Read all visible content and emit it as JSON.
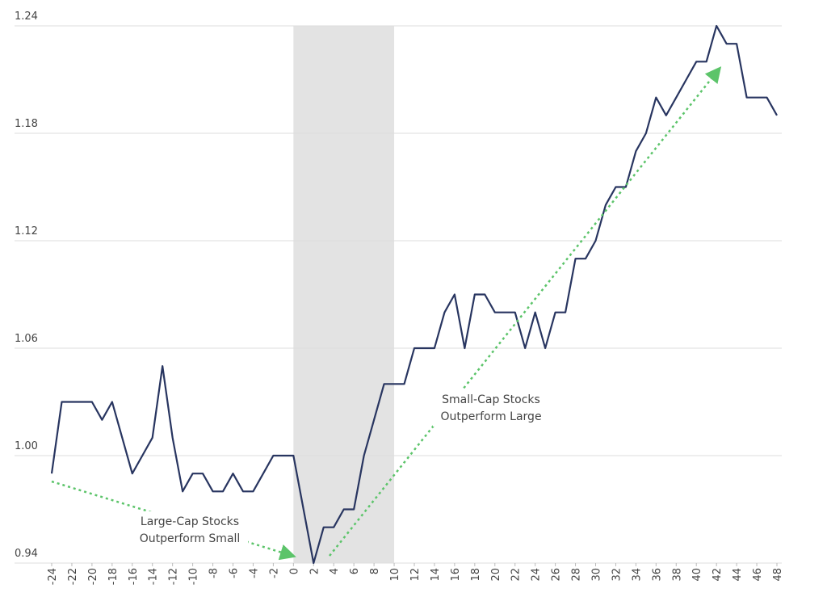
{
  "chart_data": {
    "type": "line",
    "x": [
      -24,
      -23,
      -22,
      -21,
      -20,
      -19,
      -18,
      -17,
      -16,
      -15,
      -14,
      -13,
      -12,
      -11,
      -10,
      -9,
      -8,
      -7,
      -6,
      -5,
      -4,
      -3,
      -2,
      -1,
      0,
      1,
      2,
      3,
      4,
      5,
      6,
      7,
      8,
      9,
      10,
      11,
      12,
      13,
      14,
      15,
      16,
      17,
      18,
      19,
      20,
      21,
      22,
      23,
      24,
      25,
      26,
      27,
      28,
      29,
      30,
      31,
      32,
      33,
      34,
      35,
      36,
      37,
      38,
      39,
      40,
      41,
      42,
      43,
      44,
      45,
      46,
      47,
      48
    ],
    "series": [
      {
        "color": "#283560",
        "values": [
          0.99,
          1.03,
          1.03,
          1.03,
          1.03,
          1.02,
          1.03,
          1.01,
          0.99,
          1.0,
          1.01,
          1.05,
          1.01,
          0.98,
          0.99,
          0.99,
          0.98,
          0.98,
          0.99,
          0.98,
          0.98,
          0.99,
          1.0,
          1.0,
          1.0,
          0.97,
          0.94,
          0.96,
          0.96,
          0.97,
          0.97,
          1.0,
          1.02,
          1.04,
          1.04,
          1.04,
          1.06,
          1.06,
          1.06,
          1.08,
          1.09,
          1.06,
          1.09,
          1.09,
          1.08,
          1.08,
          1.08,
          1.06,
          1.08,
          1.06,
          1.08,
          1.08,
          1.11,
          1.11,
          1.12,
          1.14,
          1.15,
          1.15,
          1.17,
          1.18,
          1.2,
          1.19,
          1.2,
          1.21,
          1.22,
          1.22,
          1.24,
          1.23,
          1.23,
          1.2,
          1.2,
          1.2,
          1.19
        ]
      }
    ],
    "xlim": [
      -24,
      48
    ],
    "xticks": [
      -24,
      -22,
      -20,
      -18,
      -16,
      -14,
      -12,
      -10,
      -8,
      -6,
      -4,
      -2,
      0,
      2,
      4,
      6,
      8,
      10,
      12,
      14,
      16,
      18,
      20,
      22,
      24,
      26,
      28,
      30,
      32,
      34,
      36,
      38,
      40,
      42,
      44,
      46,
      48
    ],
    "ylim": [
      0.94,
      1.24
    ],
    "yticks": [
      0.94,
      {
        "value": 1,
        "label": "1.00"
      },
      1.06,
      1.12,
      1.18,
      1.24
    ],
    "grid": true,
    "shade": [
      0,
      10
    ],
    "annotations": [
      {
        "lines": [
          "Large-Cap Stocks",
          "Outperform Small"
        ]
      },
      {
        "lines": [
          "Small-Cap Stocks",
          "Outperform Large"
        ]
      }
    ]
  }
}
